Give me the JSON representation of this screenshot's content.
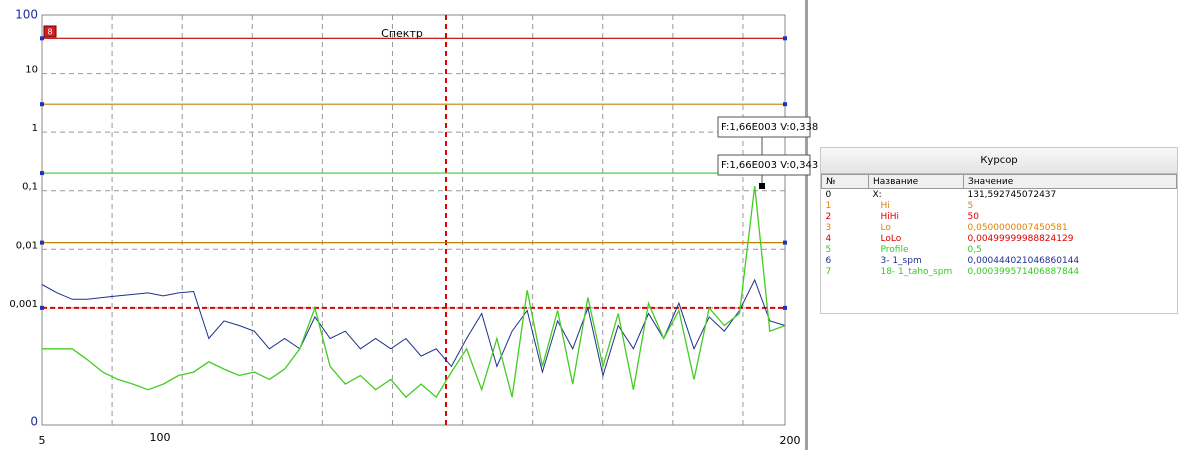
{
  "chart_data": {
    "type": "line",
    "title": "Спектр",
    "marker_label": "8",
    "log_y": true,
    "grid": true,
    "ylim": [
      1e-05,
      100
    ],
    "yticks": [
      {
        "value": 1e-05,
        "label": "0"
      },
      {
        "value": 0.001,
        "label": "0,001"
      },
      {
        "value": 0.01,
        "label": "0,01"
      },
      {
        "value": 0.1,
        "label": "0,1"
      },
      1,
      10,
      100
    ],
    "x_labels": [
      "5",
      "100",
      "200"
    ],
    "levels": [
      {
        "value": 40,
        "color": "#c00000",
        "dashed": false
      },
      {
        "value": 3,
        "color": "#c08000",
        "dashed": false
      },
      {
        "value": 0.2,
        "color": "#33cc33",
        "dashed": false
      },
      {
        "value": 0.013,
        "color": "#c08000",
        "dashed": false
      },
      {
        "value": 0.001,
        "color": "#dd0000",
        "dashed": true
      }
    ],
    "annotations": [
      "F:1,66E003 V:0,338",
      "F:1,66E003 V:0,343"
    ],
    "series": [
      {
        "name": "3- 1_spm",
        "color": "#1f2f8f",
        "values": [
          0.0025,
          0.0018,
          0.0014,
          0.0014,
          0.0015,
          0.0016,
          0.0017,
          0.0018,
          0.0016,
          0.0018,
          0.0019,
          0.0003,
          0.0006,
          0.0005,
          0.0004,
          0.0002,
          0.0003,
          0.0002,
          0.0007,
          0.0003,
          0.0004,
          0.0002,
          0.0003,
          0.0002,
          0.0003,
          0.00015,
          0.0002,
          0.0001,
          0.0003,
          0.0008,
          0.0001,
          0.0004,
          0.0009,
          8e-05,
          0.0006,
          0.0002,
          0.001,
          7e-05,
          0.0005,
          0.0002,
          0.0008,
          0.0003,
          0.0012,
          0.0002,
          0.0007,
          0.0004,
          0.0009,
          0.003,
          0.0006,
          0.0005
        ]
      },
      {
        "name": "18- 1_taho_spm",
        "color": "#44cc22",
        "values": [
          0.0002,
          0.0002,
          0.0002,
          0.00013,
          8e-05,
          6e-05,
          5e-05,
          4e-05,
          5e-05,
          7e-05,
          8e-05,
          0.00012,
          9e-05,
          7e-05,
          8e-05,
          6e-05,
          9e-05,
          0.0002,
          0.001,
          0.0001,
          5e-05,
          7e-05,
          4e-05,
          6e-05,
          3e-05,
          5e-05,
          3e-05,
          8e-05,
          0.0002,
          4e-05,
          0.0003,
          3e-05,
          0.002,
          0.0001,
          0.0009,
          5e-05,
          0.0015,
          0.0001,
          0.0008,
          4e-05,
          0.0012,
          0.0003,
          0.0009,
          6e-05,
          0.001,
          0.0005,
          0.0008,
          0.12,
          0.0004,
          0.0005
        ]
      }
    ]
  },
  "cursor_table": {
    "title": "Курсор",
    "columns": [
      "№",
      "Название",
      "Значение"
    ],
    "rows": [
      {
        "color": "#000000",
        "cells": [
          "0",
          "X:",
          "131,592745072437"
        ]
      },
      {
        "color": "#e08000",
        "cells": [
          "1",
          "Hi",
          "5"
        ]
      },
      {
        "color": "#dd0000",
        "cells": [
          "2",
          "HiHi",
          "50"
        ]
      },
      {
        "color": "#e08000",
        "cells": [
          "3",
          "Lo",
          "0,0500000007450581"
        ]
      },
      {
        "color": "#dd0000",
        "cells": [
          "4",
          "LoLo",
          "0,00499999988824129"
        ]
      },
      {
        "color": "#33cc22",
        "cells": [
          "5",
          "Profile",
          "0,5"
        ]
      },
      {
        "color": "#1f2f8f",
        "cells": [
          "6",
          "3- 1_spm",
          "0,000444021046860144"
        ]
      },
      {
        "color": "#33cc22",
        "cells": [
          "7",
          "18- 1_taho_spm",
          "0,000399571406887844"
        ]
      }
    ]
  }
}
